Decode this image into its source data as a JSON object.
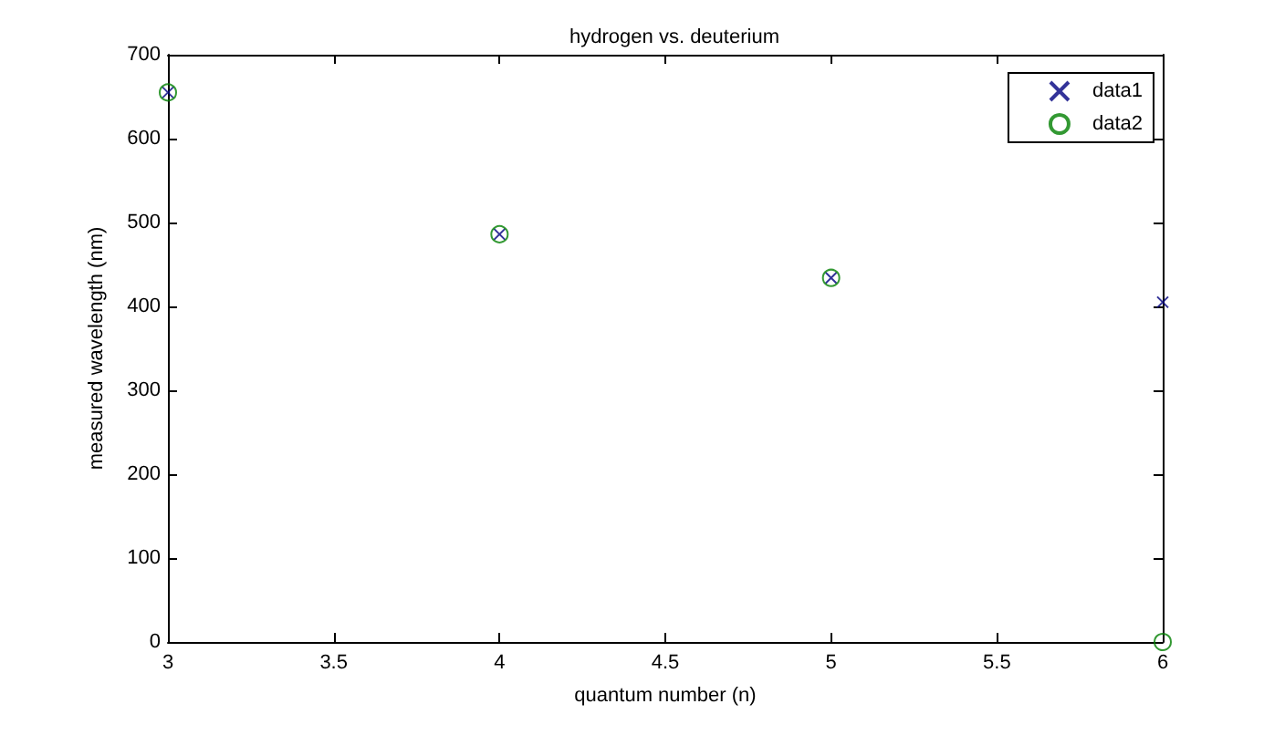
{
  "chart_data": {
    "type": "scatter",
    "title": "hydrogen vs. deuterium",
    "xlabel": "quantum number (n)",
    "ylabel": "measured wavelength (nm)",
    "x": [
      3,
      4,
      5,
      6
    ],
    "series": [
      {
        "name": "data1",
        "color": "#00007f",
        "marker": "cross",
        "values": [
          655,
          486,
          434,
          405
        ]
      },
      {
        "name": "data2",
        "color": "#007f00",
        "marker": "circle",
        "values": [
          655,
          486,
          434,
          0
        ]
      }
    ],
    "xlim": [
      3,
      6
    ],
    "xticks": [
      3,
      3.5,
      4,
      4.5,
      5,
      5.5,
      6
    ],
    "ylim": [
      0,
      700
    ],
    "yticks": [
      0,
      100,
      200,
      300,
      400,
      500,
      600,
      700
    ],
    "legend": "top right"
  }
}
